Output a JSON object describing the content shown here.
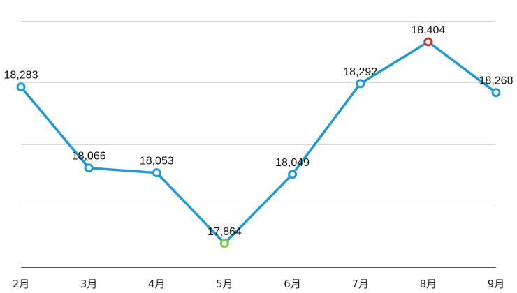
{
  "chart_data": {
    "type": "line",
    "categories": [
      "2月",
      "3月",
      "4月",
      "5月",
      "6月",
      "7月",
      "8月",
      "9月"
    ],
    "series": [
      {
        "values": [
          18283,
          18066,
          18053,
          17864,
          18049,
          18292,
          18404,
          18268
        ],
        "labels": [
          "18,283",
          "18,066",
          "18,053",
          "17,864",
          "18,049",
          "18,292",
          "18,404",
          "18,268"
        ]
      }
    ],
    "ylim": [
      17800,
      18460
    ],
    "gridlines": [
      17800,
      17965,
      18130,
      18295,
      18460
    ],
    "grid": true,
    "title": "",
    "xlabel": "",
    "ylabel": "",
    "highlights": {
      "min_index": 3,
      "max_index": 6
    },
    "colors": {
      "line": "#1f9ad6",
      "marker_fill": "#ffffff",
      "marker_default": "#1f9ad6",
      "marker_min": "#7ac943",
      "marker_max": "#d0312d"
    }
  }
}
